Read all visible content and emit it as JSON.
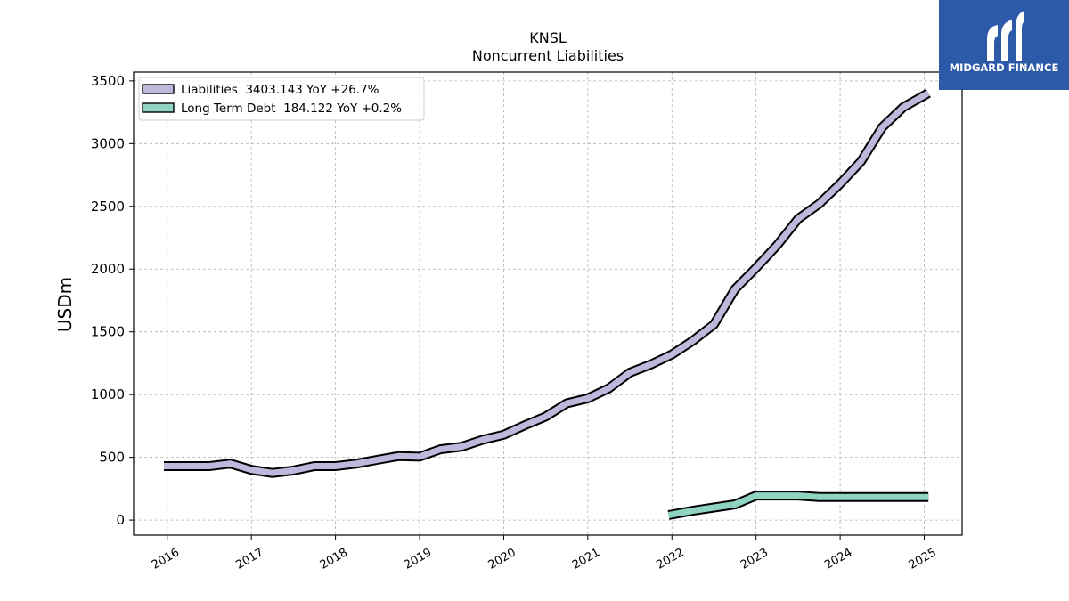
{
  "chart_data": {
    "type": "line",
    "title": "KNSL",
    "subtitle": "Noncurrent  Liabilities",
    "xlabel": "",
    "ylabel": "USDm",
    "ylim": [
      -120,
      3570
    ],
    "xlim": [
      2015.6,
      2025.45
    ],
    "yticks": [
      0,
      500,
      1000,
      1500,
      2000,
      2500,
      3000,
      3500
    ],
    "xticks": [
      "2016",
      "2017",
      "2018",
      "2019",
      "2020",
      "2021",
      "2022",
      "2023",
      "2024",
      "2025"
    ],
    "grid": true,
    "legend_position": "top-left",
    "series": [
      {
        "name": "Liabilities  3403.143 YoY +26.7%",
        "color": "#bcb9dc",
        "x": [
          2015.96,
          2016.21,
          2016.5,
          2016.75,
          2017.0,
          2017.25,
          2017.5,
          2017.75,
          2018.0,
          2018.25,
          2018.5,
          2018.75,
          2019.0,
          2019.25,
          2019.5,
          2019.75,
          2020.0,
          2020.25,
          2020.5,
          2020.75,
          2021.0,
          2021.25,
          2021.5,
          2021.75,
          2022.0,
          2022.25,
          2022.5,
          2022.75,
          2023.0,
          2023.25,
          2023.5,
          2023.75,
          2024.0,
          2024.25,
          2024.5,
          2024.75,
          2025.05
        ],
        "y": [
          430,
          430,
          430,
          450,
          400,
          375,
          395,
          430,
          430,
          450,
          480,
          510,
          505,
          565,
          585,
          640,
          680,
          755,
          825,
          930,
          970,
          1050,
          1175,
          1240,
          1320,
          1430,
          1560,
          1840,
          2010,
          2190,
          2400,
          2520,
          2680,
          2860,
          3130,
          3290,
          3403
        ]
      },
      {
        "name": "Long Term Debt  184.122 YoY +0.2%",
        "color": "#8fd3c3",
        "x": [
          2021.96,
          2022.25,
          2022.5,
          2022.75,
          2023.0,
          2023.25,
          2023.5,
          2023.75,
          2024.0,
          2024.25,
          2024.5,
          2024.75,
          2025.05
        ],
        "y": [
          40,
          75,
          100,
          125,
          195,
          195,
          195,
          184,
          184,
          184,
          184,
          184,
          184
        ]
      }
    ]
  },
  "brand": {
    "name": "MIDGARD FINANCE",
    "color": "#2c5aa8"
  }
}
